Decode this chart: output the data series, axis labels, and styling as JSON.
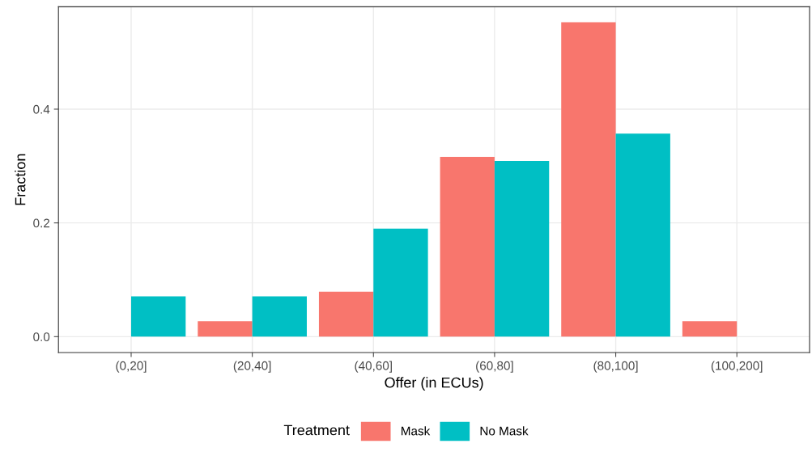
{
  "chart_data": {
    "type": "bar",
    "xlabel": "Offer (in ECUs)",
    "ylabel": "Fraction",
    "categories": [
      "(0,20]",
      "(20,40]",
      "(40,60]",
      "(60,80]",
      "(80,100]",
      "(100,200]"
    ],
    "series": [
      {
        "name": "Mask",
        "color": "#f8766d",
        "values": [
          null,
          0.027,
          0.079,
          0.316,
          0.553,
          0.027
        ]
      },
      {
        "name": "No Mask",
        "color": "#00bfc4",
        "values": [
          0.071,
          0.071,
          0.19,
          0.309,
          0.357,
          null
        ]
      }
    ],
    "ylim": [
      -0.028,
      0.58
    ],
    "yticks": [
      {
        "value": 0,
        "label": "0.0"
      },
      {
        "value": 0.2,
        "label": "0.2"
      },
      {
        "value": 0.4,
        "label": "0.4"
      }
    ],
    "grid": true,
    "legend": "bottom",
    "legend_title": "Treatment"
  }
}
